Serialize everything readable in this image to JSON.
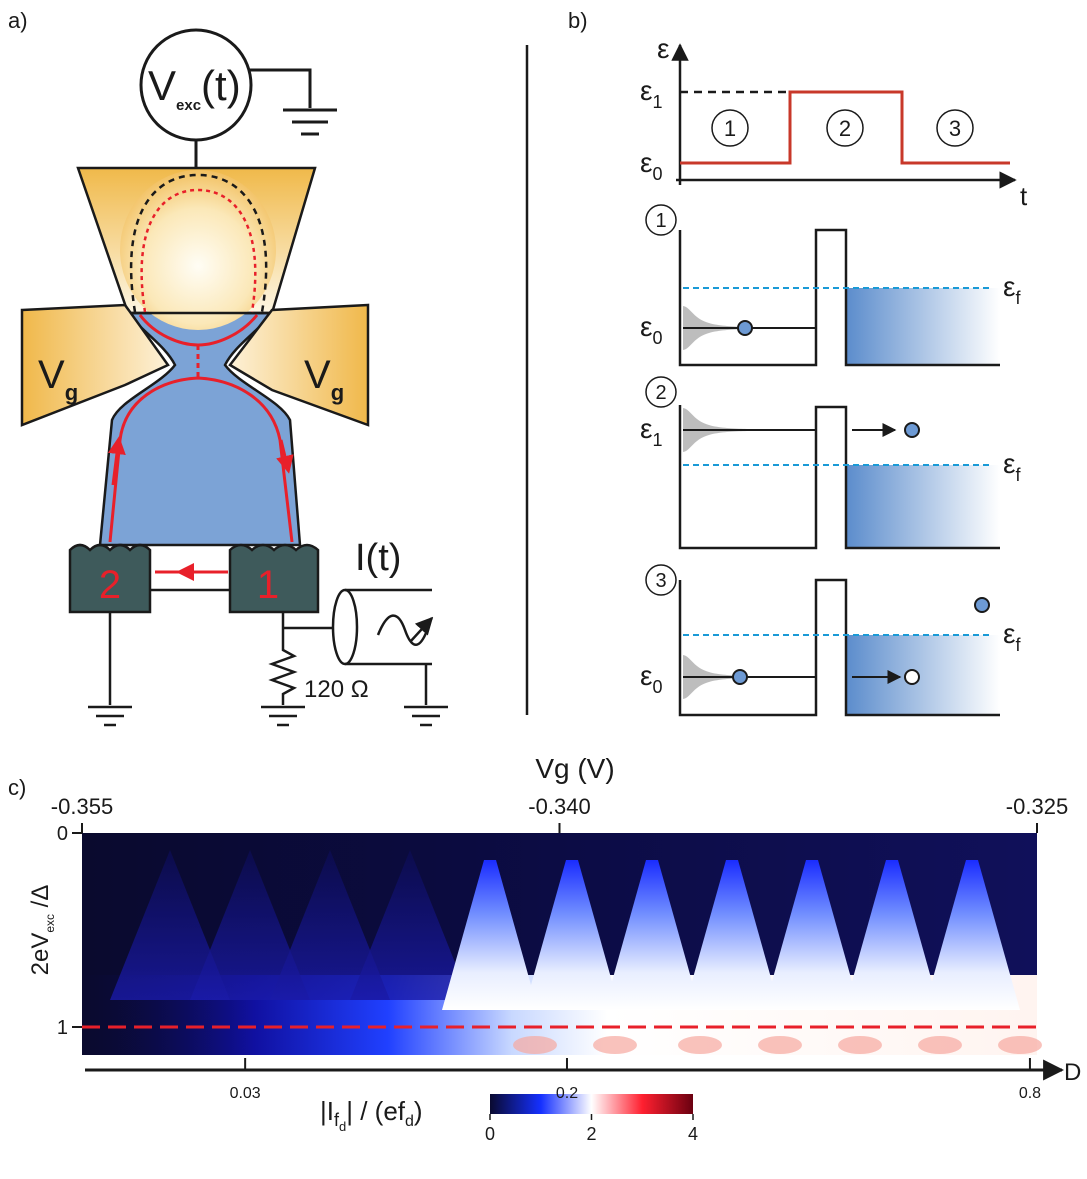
{
  "panel_a": {
    "label": "a)",
    "source": {
      "main": "V",
      "sub": "exc",
      "rest": "(t)"
    },
    "gate_left": {
      "main": "V",
      "sub": "g"
    },
    "gate_right": {
      "main": "V",
      "sub": "g"
    },
    "contact_left": "2",
    "contact_right": "1",
    "current": "I(t)",
    "resistor": "120 Ω"
  },
  "panel_b": {
    "label": "b)",
    "axis_y": "ε",
    "axis_x": "t",
    "level_high": {
      "main": "ε",
      "sub": "1"
    },
    "level_low": {
      "main": "ε",
      "sub": "0"
    },
    "phases": [
      "1",
      "2",
      "3"
    ],
    "diagrams": [
      {
        "step": "1",
        "level": {
          "main": "ε",
          "sub": "0"
        },
        "fermi": {
          "main": "ε",
          "sub": "f"
        }
      },
      {
        "step": "2",
        "level": {
          "main": "ε",
          "sub": "1"
        },
        "fermi": {
          "main": "ε",
          "sub": "f"
        }
      },
      {
        "step": "3",
        "level": {
          "main": "ε",
          "sub": "0"
        },
        "fermi": {
          "main": "ε",
          "sub": "f"
        }
      }
    ]
  },
  "panel_c": {
    "label": "c)",
    "top_axis": {
      "title": "Vg (V)",
      "ticks": [
        -0.355,
        {
          "value": -0.34,
          "label": "-0.340"
        },
        -0.325
      ]
    },
    "y_axis": {
      "title": {
        "pre": "2eV",
        "sub": "exc",
        "post": " /Δ"
      },
      "ticks": [
        0,
        1
      ]
    },
    "bottom_axis": {
      "title": "D",
      "ticks": [
        0.03,
        0.2,
        0.8
      ]
    },
    "colorbar": {
      "title": [
        "|I",
        "f",
        "d",
        "| / (ef",
        "d",
        ")"
      ],
      "ticks": [
        0,
        2,
        4
      ]
    }
  }
}
